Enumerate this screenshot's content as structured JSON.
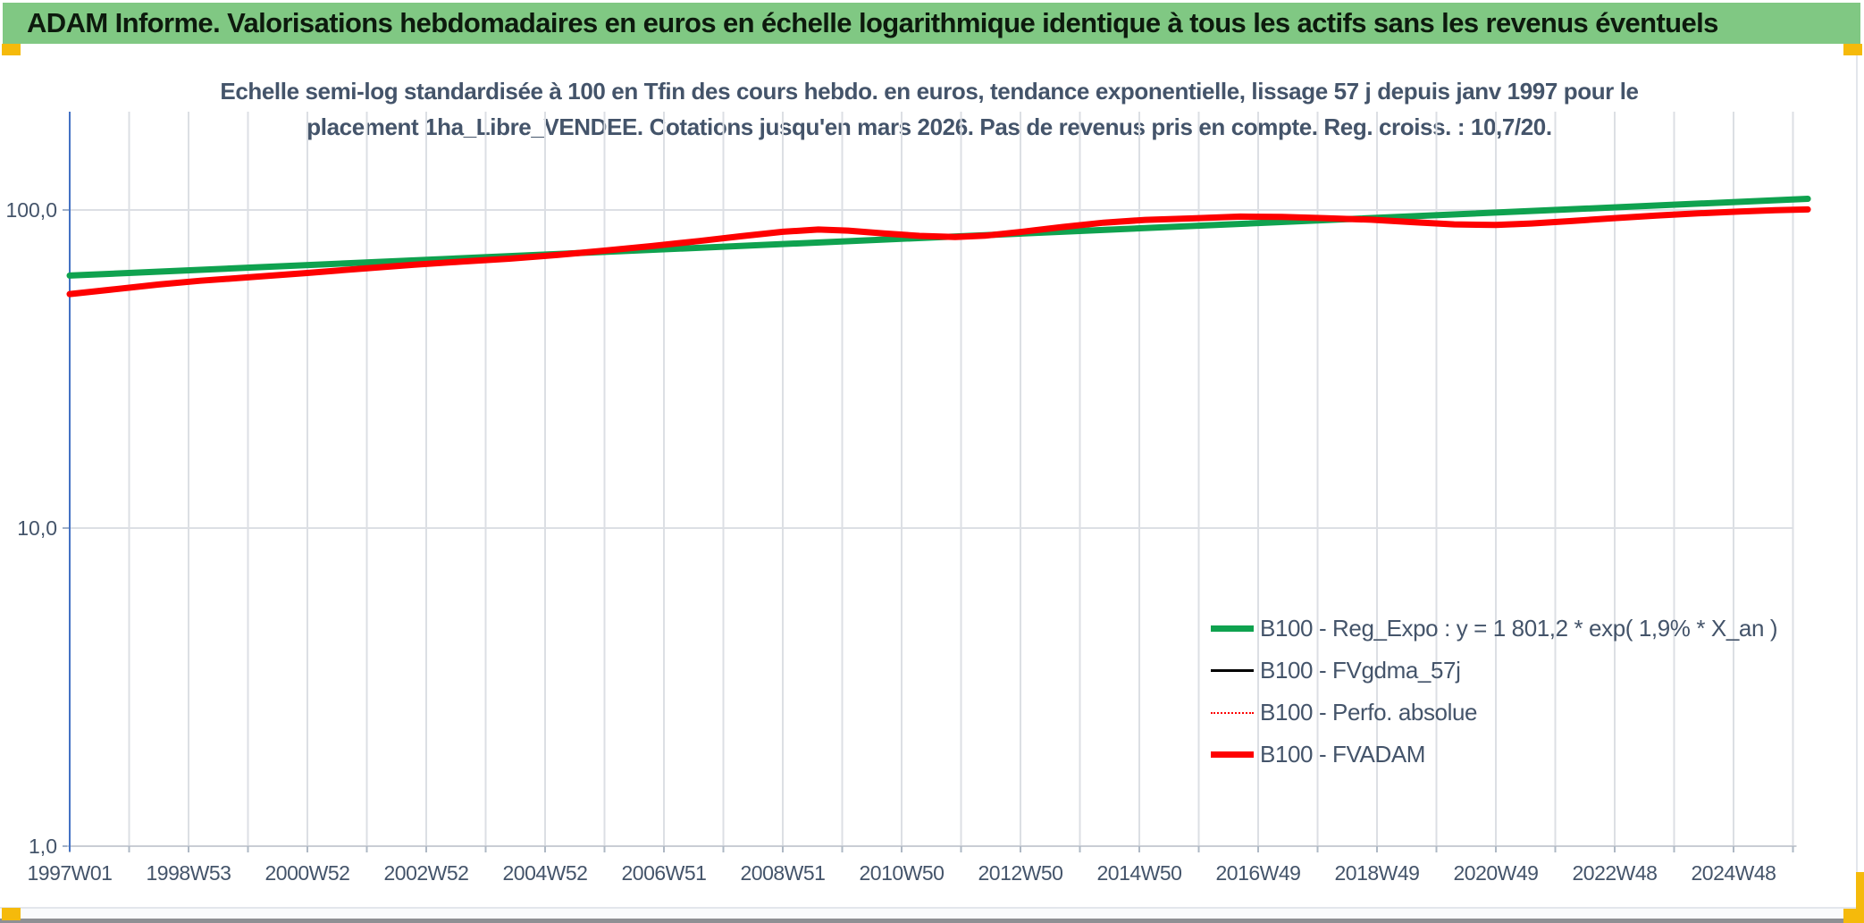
{
  "header": {
    "title": "ADAM Informe. Valorisations hebdomadaires en euros en échelle logarithmique identique à tous les actifs sans les revenus éventuels"
  },
  "colors": {
    "banner_bg": "#80C883",
    "accent_gold": "#F5BA0B",
    "chart_text": "#44546A",
    "axis_line": "#4472C4",
    "gridline": "#DCDFE4",
    "series_green": "#0FA24F",
    "series_red": "#FE0000",
    "series_black": "#000000"
  },
  "chart_data": {
    "type": "line",
    "title_line1": "Echelle semi-log standardisée à 100 en Tfin des cours hebdo. en euros, tendance exponentielle, lissage 57 j depuis janv 1997 pour le",
    "title_line2": "placement 1ha_Libre_VENDEE. Cotations jusqu'en mars 2026. Pas de revenus pris en compte. Reg. croiss. : 10,7/20.",
    "y_axis": {
      "scale": "log",
      "range": [
        1.0,
        160.0
      ],
      "ticks": [
        {
          "label": "100,0",
          "value": 100
        },
        {
          "label": "10,0",
          "value": 10
        },
        {
          "label": "1,0",
          "value": 1
        }
      ]
    },
    "x_axis": {
      "range_years": [
        1997.0,
        2026.35
      ],
      "gridline_every_years": 1,
      "tick_label_every_years": 2,
      "tick_labels": [
        "1997W01",
        "1998W53",
        "2000W52",
        "2002W52",
        "2004W52",
        "2006W51",
        "2008W51",
        "2010W50",
        "2012W50",
        "2014W50",
        "2016W49",
        "2018W49",
        "2020W49",
        "2022W48",
        "2024W48"
      ]
    },
    "legend_position": "inside-bottom-right",
    "series": [
      {
        "name": "B100 - Reg_Expo : y = 1 801,2 * exp( 1,9% *  X_an )",
        "color": "#0FA24F",
        "width": 7,
        "style": "solid",
        "points": [
          [
            1997.0,
            62.2
          ],
          [
            2026.25,
            108.4
          ]
        ]
      },
      {
        "name": "B100 - FVgdma_57j",
        "color": "#000000",
        "width": 3,
        "style": "solid",
        "points_ref": "FVADAM",
        "note": "hidden beneath B100 - FVADAM in the plot"
      },
      {
        "name": "B100 - Perfo. absolue",
        "color": "#FE0000",
        "width": 2.5,
        "style": "dotted",
        "points_ref": "FVADAM",
        "note": "hidden beneath B100 - FVADAM in the plot"
      },
      {
        "name": "B100 - FVADAM",
        "key": "FVADAM",
        "color": "#FE0000",
        "width": 7,
        "style": "solid",
        "points": [
          [
            1997.0,
            54.4
          ],
          [
            1997.7,
            56.2
          ],
          [
            1998.5,
            58.3
          ],
          [
            1999.2,
            59.9
          ],
          [
            2000.0,
            61.4
          ],
          [
            2001.0,
            63.4
          ],
          [
            2002.0,
            65.6
          ],
          [
            2002.8,
            67.3
          ],
          [
            2003.6,
            68.8
          ],
          [
            2004.4,
            70.3
          ],
          [
            2005.2,
            72.2
          ],
          [
            2006.0,
            74.5
          ],
          [
            2006.8,
            77.0
          ],
          [
            2007.6,
            79.9
          ],
          [
            2008.3,
            82.7
          ],
          [
            2009.0,
            85.4
          ],
          [
            2009.6,
            86.8
          ],
          [
            2010.1,
            86.1
          ],
          [
            2010.7,
            84.4
          ],
          [
            2011.3,
            82.9
          ],
          [
            2011.9,
            82.2
          ],
          [
            2012.4,
            83.0
          ],
          [
            2013.0,
            85.3
          ],
          [
            2013.7,
            88.4
          ],
          [
            2014.4,
            91.2
          ],
          [
            2015.1,
            93.1
          ],
          [
            2015.9,
            94.1
          ],
          [
            2016.7,
            95.3
          ],
          [
            2017.4,
            95.1
          ],
          [
            2018.1,
            94.3
          ],
          [
            2018.9,
            93.2
          ],
          [
            2019.6,
            91.6
          ],
          [
            2020.3,
            90.1
          ],
          [
            2021.0,
            89.7
          ],
          [
            2021.6,
            90.7
          ],
          [
            2022.3,
            92.4
          ],
          [
            2023.0,
            94.3
          ],
          [
            2023.7,
            96.1
          ],
          [
            2024.4,
            97.6
          ],
          [
            2025.1,
            98.9
          ],
          [
            2025.7,
            99.8
          ],
          [
            2026.25,
            100.4
          ]
        ]
      }
    ]
  }
}
